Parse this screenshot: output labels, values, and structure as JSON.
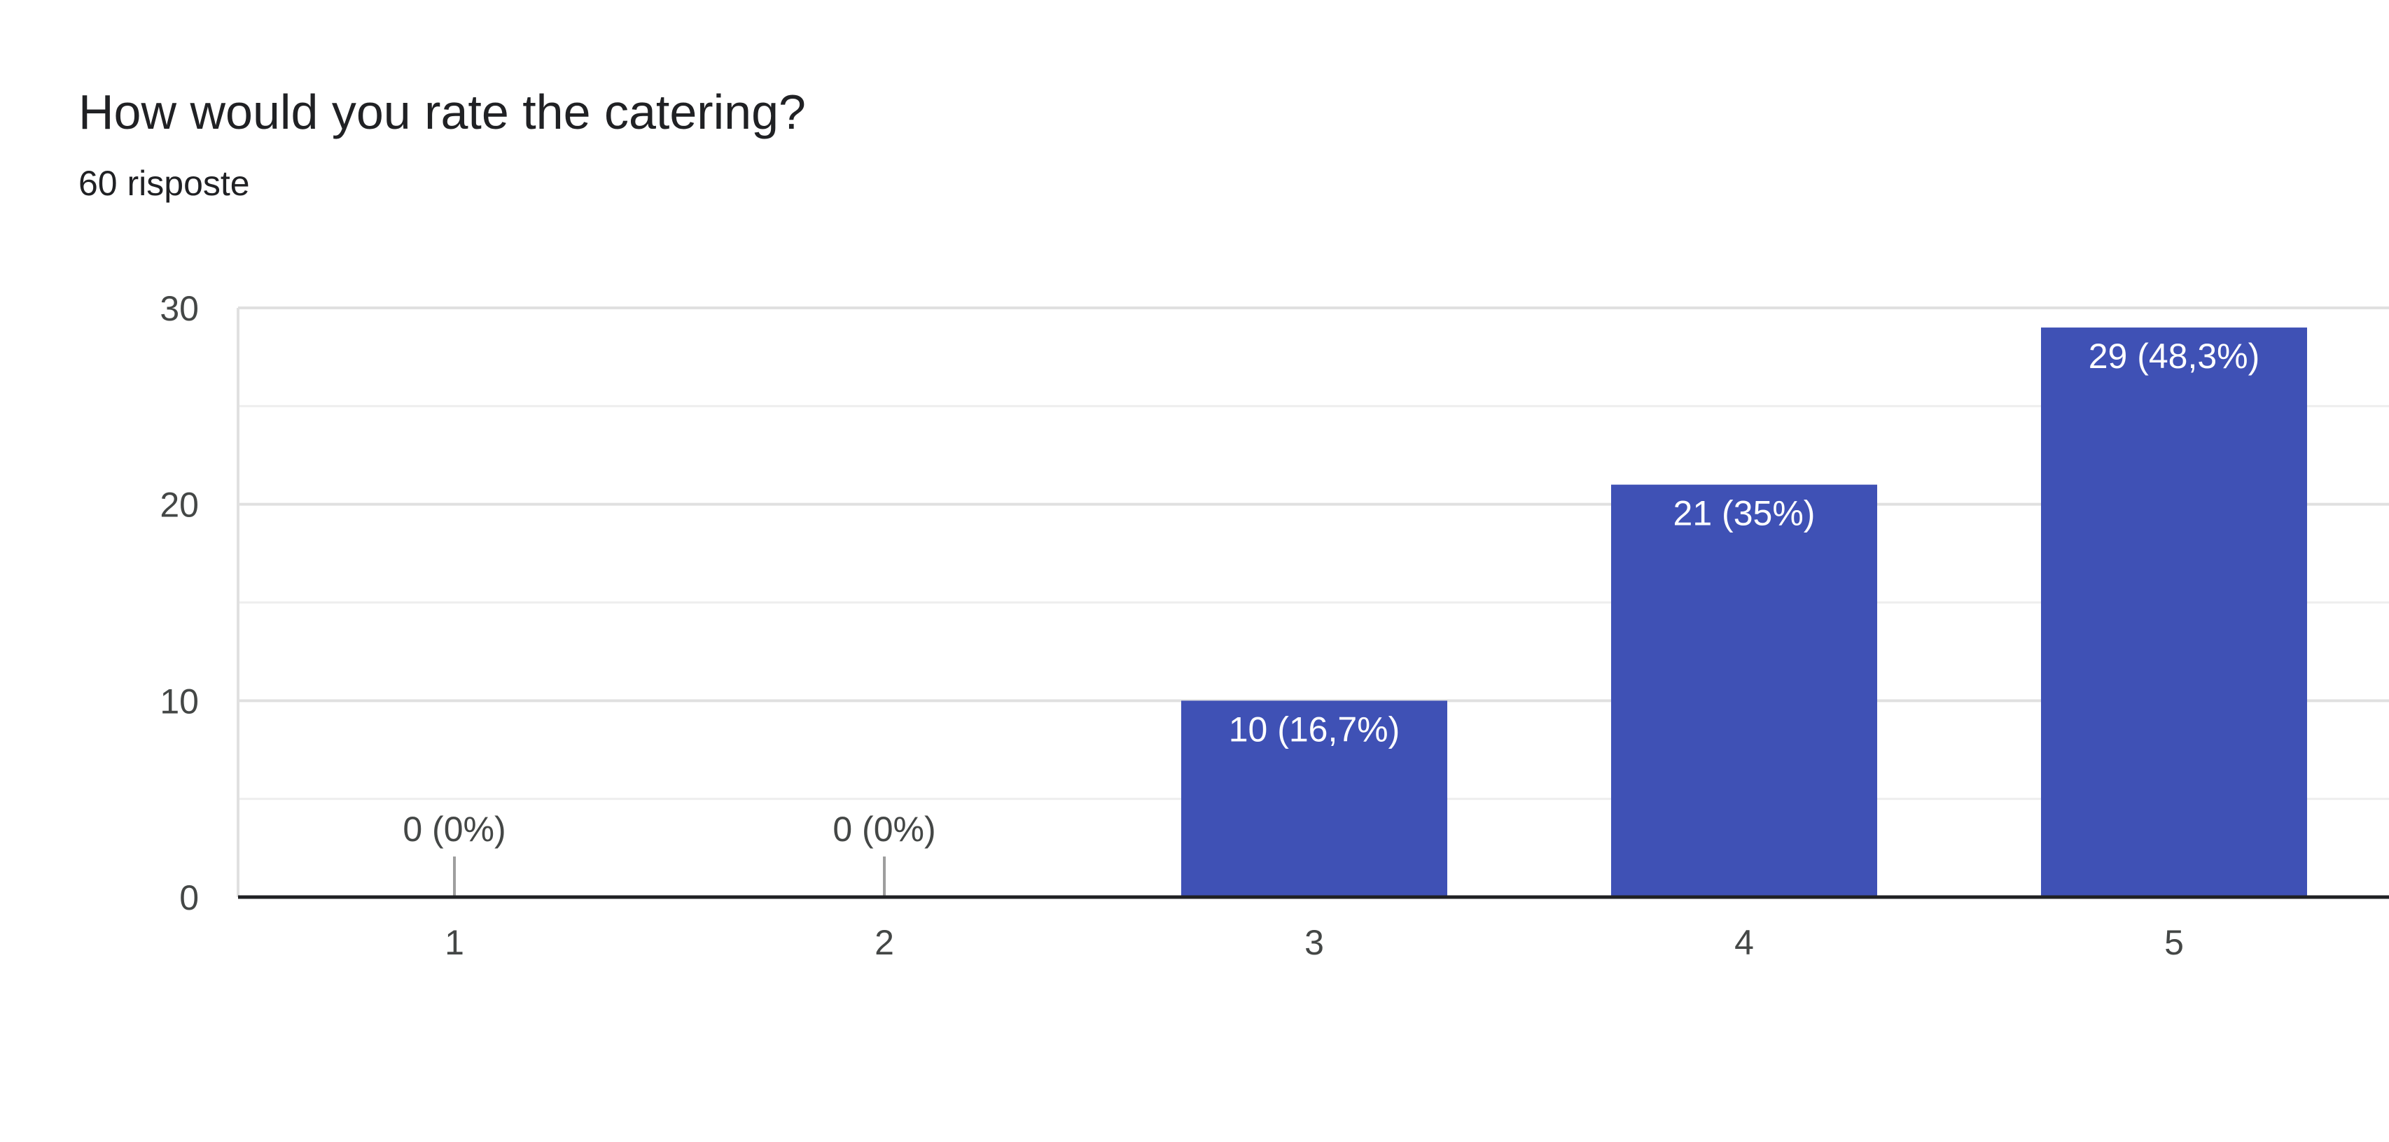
{
  "header": {
    "title": "How would you rate the catering?",
    "subtitle": "60 risposte"
  },
  "colors": {
    "bar": "#3f51b5",
    "grid": "#e0e0e0",
    "grid_minor": "#eeeeee",
    "axis": "#202124",
    "label_inside": "#ffffff",
    "label_outside": "#444746",
    "zero_marker": "#9e9e9e"
  },
  "chart_data": {
    "type": "bar",
    "categories": [
      "1",
      "2",
      "3",
      "4",
      "5"
    ],
    "values": [
      0,
      0,
      10,
      21,
      29
    ],
    "data_labels": [
      "0 (0%)",
      "0 (0%)",
      "10 (16,7%)",
      "21 (35%)",
      "29 (48,3%)"
    ],
    "ylim": [
      0,
      30
    ],
    "yticks": [
      "0",
      "10",
      "20",
      "30"
    ],
    "ytick_values": [
      0,
      10,
      20,
      30
    ],
    "grid": true,
    "legend": "none"
  }
}
